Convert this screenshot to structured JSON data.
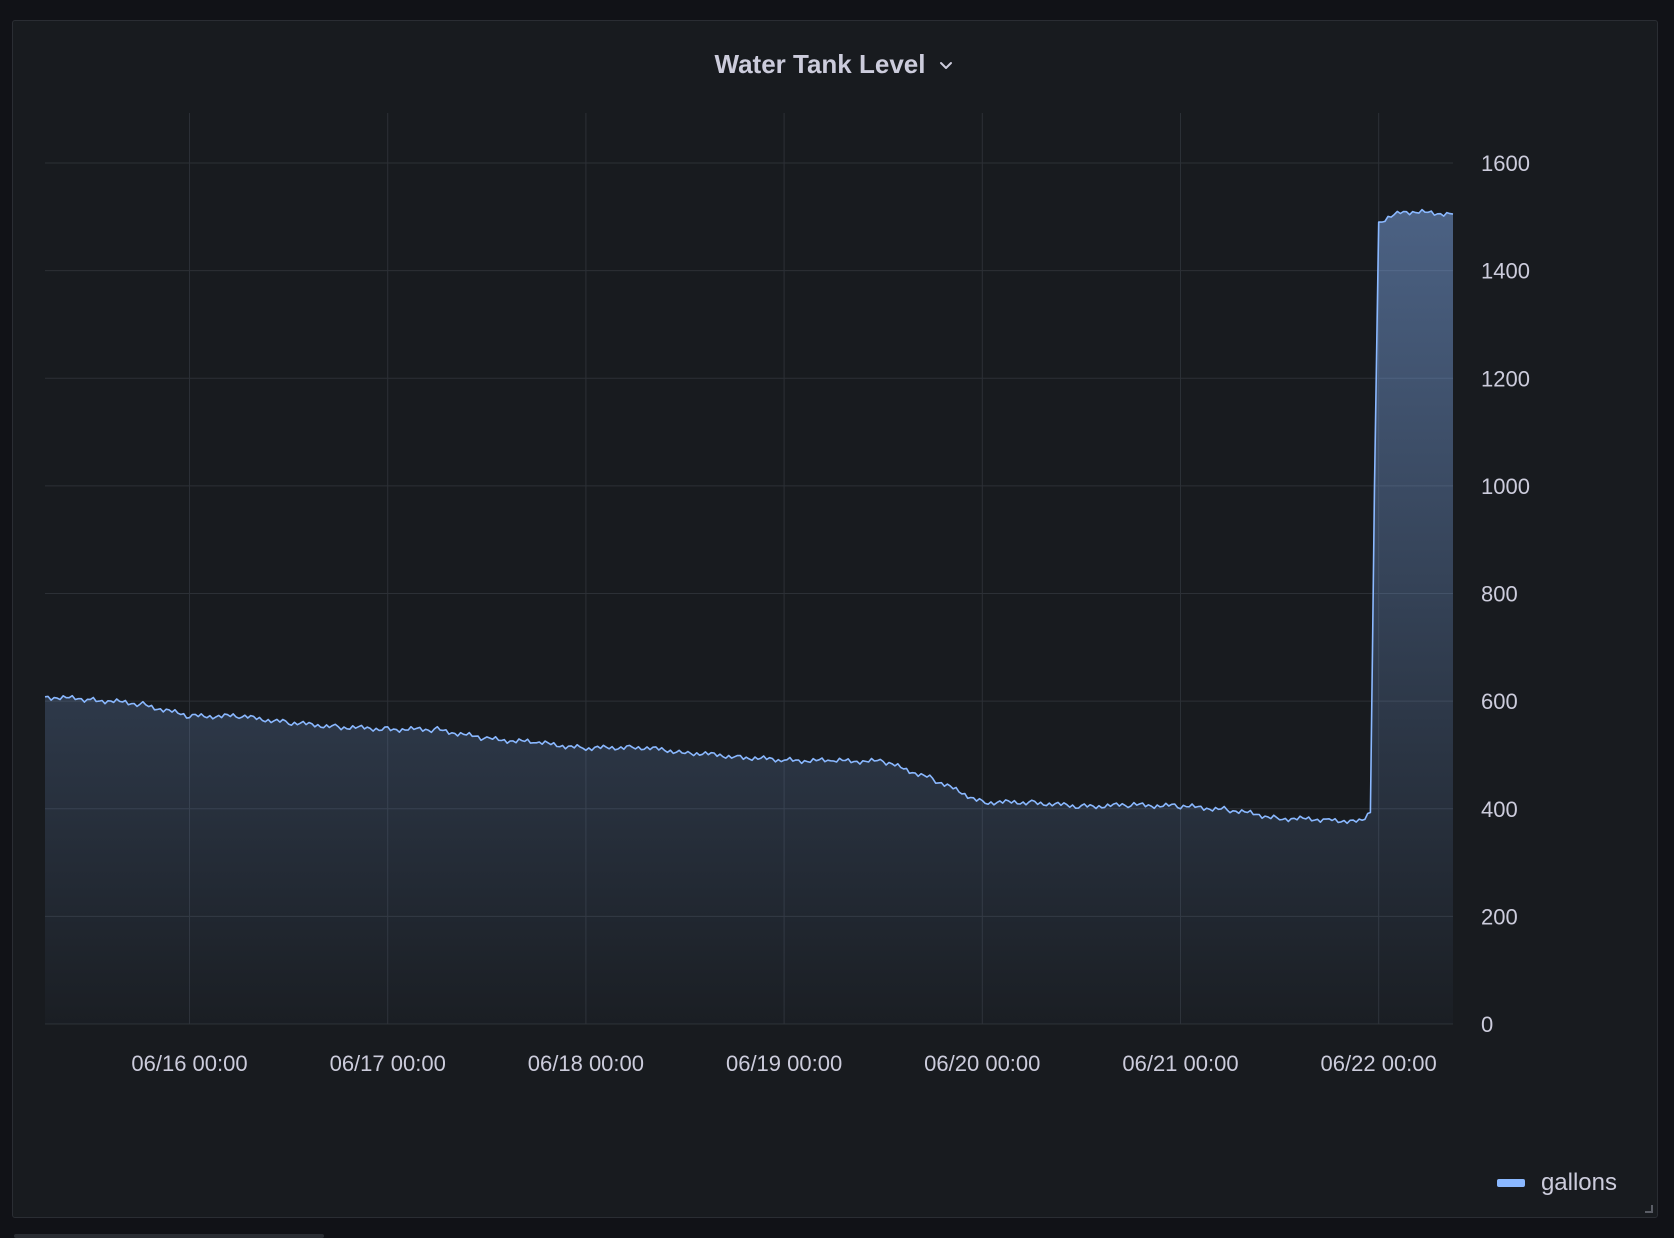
{
  "panel": {
    "title": "Water Tank Level",
    "menu_icon": "chevron-down-icon"
  },
  "colors": {
    "background": "#111217",
    "panel": "#181b1f",
    "series": "#8ab8ff",
    "grid": "#2c3036",
    "text": "#ccccdc"
  },
  "chart_data": {
    "type": "area",
    "title": "Water Tank Level",
    "xlabel": "",
    "ylabel": "",
    "x_ticks": [
      "06/16 00:00",
      "06/17 00:00",
      "06/18 00:00",
      "06/19 00:00",
      "06/20 00:00",
      "06/21 00:00",
      "06/22 00:00"
    ],
    "y_ticks": [
      0,
      200,
      400,
      600,
      800,
      1000,
      1200,
      1400,
      1600
    ],
    "ylim": [
      0,
      1600
    ],
    "xlim": [
      "06/15 06:30",
      "06/22 09:00"
    ],
    "y_axis_side": "right",
    "grid": true,
    "legend_position": "bottom-right",
    "series": [
      {
        "name": "gallons",
        "x": [
          "06/15 06:30",
          "06/15 12:00",
          "06/15 18:00",
          "06/16 00:00",
          "06/16 06:00",
          "06/16 12:00",
          "06/16 18:00",
          "06/17 00:00",
          "06/17 06:00",
          "06/17 12:00",
          "06/17 18:00",
          "06/18 00:00",
          "06/18 06:00",
          "06/18 12:00",
          "06/18 18:00",
          "06/19 00:00",
          "06/19 06:00",
          "06/19 12:00",
          "06/19 18:00",
          "06/20 00:00",
          "06/20 06:00",
          "06/20 12:00",
          "06/20 18:00",
          "06/21 00:00",
          "06/21 06:00",
          "06/21 12:00",
          "06/21 18:00",
          "06/21 22:00",
          "06/21 23:00",
          "06/21 23:30",
          "06/22 00:00",
          "06/22 03:00",
          "06/22 06:00",
          "06/22 09:00"
        ],
        "values": [
          608,
          603,
          595,
          572,
          572,
          560,
          552,
          548,
          547,
          530,
          523,
          512,
          515,
          505,
          497,
          490,
          489,
          488,
          455,
          412,
          412,
          404,
          407,
          405,
          398,
          382,
          380,
          375,
          393,
          1000,
          1490,
          1510,
          1508,
          1505
        ]
      }
    ]
  },
  "legend": {
    "items": [
      {
        "label": "gallons"
      }
    ]
  }
}
